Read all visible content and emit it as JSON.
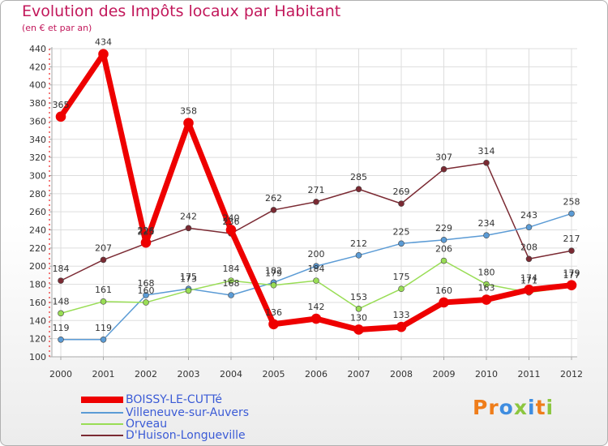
{
  "header": {
    "title": "Evolution des Impôts locaux par Habitant",
    "subtitle": "(en € et par an)"
  },
  "brand": {
    "name": "Proxiti",
    "letters": [
      "P",
      "r",
      "o",
      "x",
      "i",
      "t",
      "i"
    ],
    "colors": [
      "#ef7d1a",
      "#ef7d1a",
      "#3f8de0",
      "#8cc63f",
      "#3f8de0",
      "#ef7d1a",
      "#8cc63f"
    ]
  },
  "chart_data": {
    "type": "line",
    "title": "Evolution des Impôts locaux par Habitant",
    "subtitle": "(en € et par an)",
    "x": [
      "2000",
      "2001",
      "2002",
      "2003",
      "2004",
      "2005",
      "2006",
      "2007",
      "2008",
      "2009",
      "2010",
      "2011",
      "2012"
    ],
    "ylim": [
      100,
      440
    ],
    "yticks": [
      100,
      120,
      140,
      160,
      180,
      200,
      220,
      240,
      260,
      280,
      300,
      320,
      340,
      360,
      380,
      400,
      420,
      440
    ],
    "grid": true,
    "legend_position": "bottom-left",
    "series": [
      {
        "name": "BOISSY-LE-CUTTé",
        "color": "#ee0000",
        "width": 7,
        "values": [
          365,
          434,
          226,
          358,
          240,
          136,
          142,
          130,
          133,
          160,
          163,
          174,
          179
        ],
        "labels": [
          "365",
          "434",
          "226",
          "358",
          "240",
          "136",
          "142",
          "130",
          "133",
          "160",
          "163",
          "174",
          "179"
        ]
      },
      {
        "name": "Villeneuve-sur-Auvers",
        "color": "#5b9bd5",
        "width": 1.5,
        "values": [
          119,
          119,
          168,
          175,
          168,
          182,
          200,
          212,
          225,
          229,
          234,
          243,
          258
        ],
        "labels": [
          "119",
          "119",
          "168",
          "175",
          "168",
          "182",
          "200",
          "212",
          "225",
          "229",
          "234",
          "243",
          "258"
        ]
      },
      {
        "name": "Orveau",
        "color": "#99dd55",
        "width": 1.5,
        "values": [
          148,
          161,
          160,
          173,
          184,
          179,
          184,
          153,
          175,
          206,
          180,
          171,
          177
        ],
        "labels": [
          "148",
          "161",
          "160",
          "173",
          "184",
          "179",
          "184",
          "153",
          "175",
          "206",
          "180",
          "171",
          "177"
        ]
      },
      {
        "name": "D'Huison-Longueville",
        "color": "#7b2a33",
        "width": 1.5,
        "values": [
          184,
          207,
          225,
          242,
          236,
          262,
          271,
          285,
          269,
          307,
          314,
          208,
          217
        ],
        "labels": [
          "184",
          "207",
          "225",
          "242",
          "236",
          "262",
          "271",
          "285",
          "269",
          "307",
          "314",
          "208",
          "217"
        ]
      }
    ]
  }
}
